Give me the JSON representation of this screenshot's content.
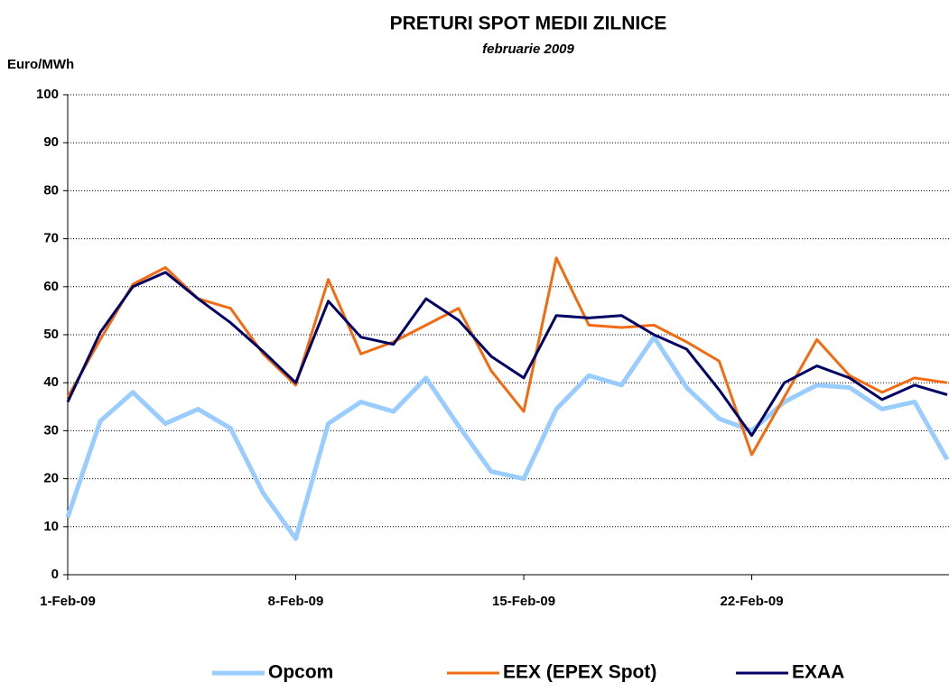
{
  "chart_data": {
    "type": "line",
    "title": "PRETURI SPOT MEDII ZILNICE",
    "subtitle": "februarie 2009",
    "y_label": "Euro/MWh",
    "categories": [
      "1-Feb-09",
      null,
      null,
      null,
      null,
      null,
      null,
      "8-Feb-09",
      null,
      null,
      null,
      null,
      null,
      null,
      "15-Feb-09",
      null,
      null,
      null,
      null,
      null,
      null,
      "22-Feb-09",
      null,
      null,
      null,
      null,
      null,
      null
    ],
    "series": [
      {
        "name": "Opcom",
        "color": "#99ccff",
        "values": [
          12,
          32,
          38,
          31.5,
          34.5,
          30.5,
          17,
          7.5,
          31.5,
          36,
          34,
          41,
          31,
          21.5,
          20,
          34.5,
          41.5,
          39.5,
          49.5,
          39,
          32.5,
          30,
          36,
          39.5,
          39,
          34.5,
          36,
          24
        ]
      },
      {
        "name": "EEX (EPEX Spot)",
        "color": "#f26b10",
        "values": [
          37,
          49,
          60.5,
          64,
          57.5,
          55.5,
          46,
          39.5,
          61.5,
          46,
          48.5,
          52,
          55.5,
          42.5,
          34,
          66,
          52,
          51.5,
          52,
          48.5,
          44.5,
          25,
          37,
          49,
          41.5,
          38,
          41,
          40
        ]
      },
      {
        "name": "EXAA",
        "color": "#000066",
        "values": [
          36,
          50.5,
          60,
          63,
          57.5,
          52.5,
          46.5,
          40,
          57,
          49.5,
          48,
          57.5,
          53,
          45.5,
          41,
          54,
          53.5,
          54,
          50,
          47,
          38.5,
          29,
          40,
          43.5,
          41,
          36.5,
          39.5,
          37.5
        ]
      }
    ],
    "ylim": [
      0,
      100
    ],
    "yticks": [
      0,
      10,
      20,
      30,
      40,
      50,
      60,
      70,
      80,
      90,
      100
    ],
    "grid": true,
    "legend": "bottom"
  }
}
